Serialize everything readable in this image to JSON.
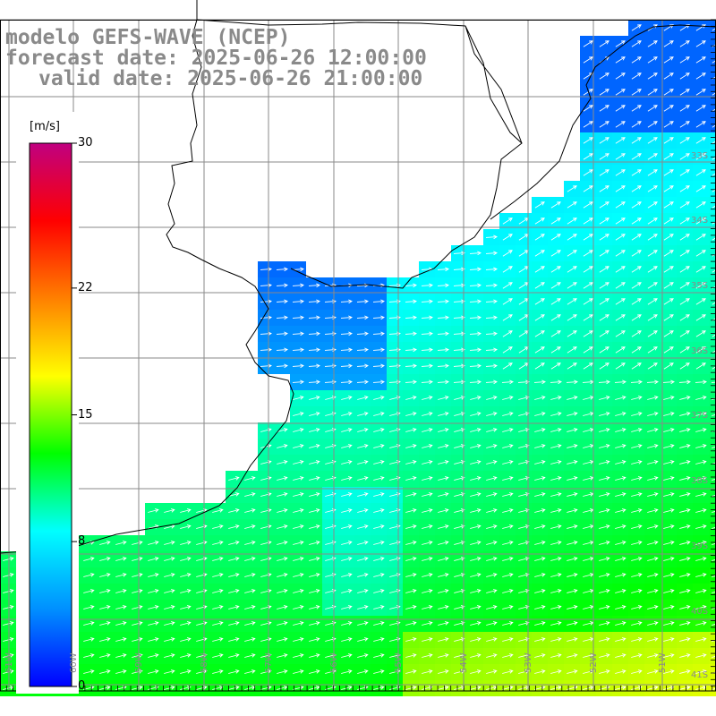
{
  "title": {
    "model": "modelo GEFS-WAVE (NCEP)",
    "forecast": "forecast date: 2025-06-26 12:00:00",
    "valid": "valid date: 2025-06-26 21:00:00"
  },
  "colorbar": {
    "unit": "[m/s]",
    "ticks": [
      {
        "value": 30,
        "label": "30"
      },
      {
        "value": 22,
        "label": "22"
      },
      {
        "value": 15,
        "label": "15"
      },
      {
        "value": 8,
        "label": "8"
      },
      {
        "value": 0,
        "label": "0"
      }
    ],
    "range": [
      0,
      30
    ],
    "colors": [
      "#0000ff",
      "#0090ff",
      "#00ffff",
      "#00ff00",
      "#ffff00",
      "#ff8000",
      "#ff0000",
      "#c00080"
    ]
  },
  "grid": {
    "lat_labels": [
      "33S",
      "34S",
      "35S",
      "36S",
      "37S",
      "38S",
      "39S",
      "40S",
      "41S"
    ],
    "lon_labels": [
      "61W",
      "60W",
      "59W",
      "58W",
      "57W",
      "56W",
      "55W",
      "54W",
      "53W",
      "52W",
      "51W"
    ]
  },
  "colors": {
    "land": "#ffffff",
    "coast": "#000000",
    "grid": "#8a8a8a",
    "title": "#8a8a8a",
    "arrow": "#ffffff"
  }
}
